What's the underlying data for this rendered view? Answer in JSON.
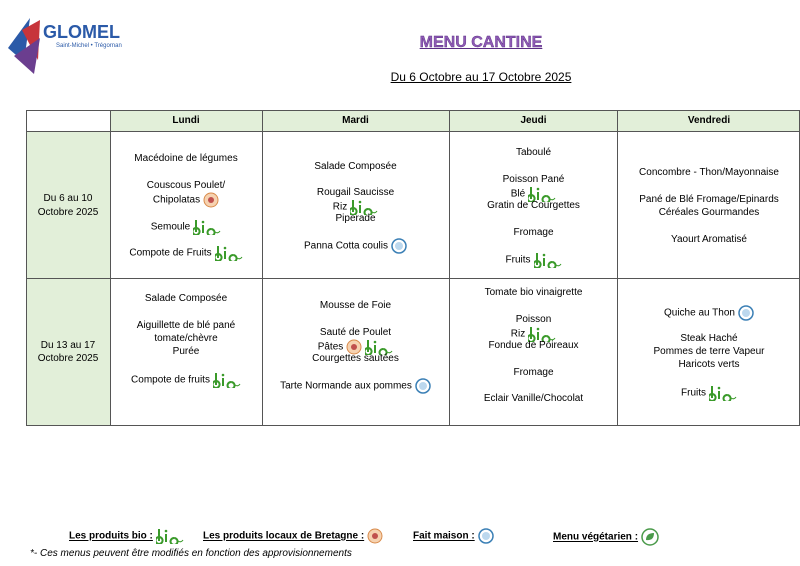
{
  "logo": {
    "name": "GLOMEL",
    "subtitle": "Saint-Michel • Trégornan"
  },
  "header": {
    "title": "MENU CANTINE",
    "subtitle": "Du 6 Octobre au 17 Octobre 2025"
  },
  "table": {
    "columns": [
      "Lundi",
      "Mardi",
      "Jeudi",
      "Vendredi"
    ],
    "rows": [
      {
        "label": [
          "Du 6 au 10",
          "Octobre 2025"
        ],
        "cells": [
          [
            "Macédoine de légumes",
            "Couscous Poulet/",
            "Chipolatas",
            "Semoule",
            "Compote de Fruits"
          ],
          [
            "Salade Composée",
            "Rougail Saucisse",
            "Riz",
            "Piperade",
            "Panna Cotta coulis"
          ],
          [
            "Taboulé",
            "Poisson Pané",
            "Blé",
            "Gratin de Courgettes",
            "Fromage",
            "Fruits"
          ],
          [
            "Concombre - Thon/Mayonnaise",
            "Pané de Blé Fromage/Epinards",
            "Céréales Gourmandes",
            "Yaourt Aromatisé"
          ]
        ]
      },
      {
        "label": [
          "Du 13 au 17",
          "Octobre 2025"
        ],
        "cells": [
          [
            "Salade Composée",
            "Aiguillette de blé pané",
            "tomate/chèvre",
            "Purée",
            "Compote de fruits"
          ],
          [
            "Mousse de Foie",
            "Sauté de Poulet",
            "Pâtes",
            "Courgettes sautées",
            "Tarte Normande aux pommes"
          ],
          [
            "Tomate bio vinaigrette",
            "Poisson",
            "Riz",
            "Fondue de Poireaux",
            "Fromage",
            "Eclair Vanille/Chocolat"
          ],
          [
            "Quiche au Thon",
            "Steak Haché",
            "Pommes de terre Vapeur",
            "Haricots verts",
            "Fruits"
          ]
        ]
      }
    ]
  },
  "legend": [
    "Les produits bio :",
    "Les produits locaux de Bretagne :",
    "Fait maison :",
    "Menu végétarien :"
  ],
  "footnote": "*- Ces menus peuvent être modifiés en fonction des approvisionnements"
}
